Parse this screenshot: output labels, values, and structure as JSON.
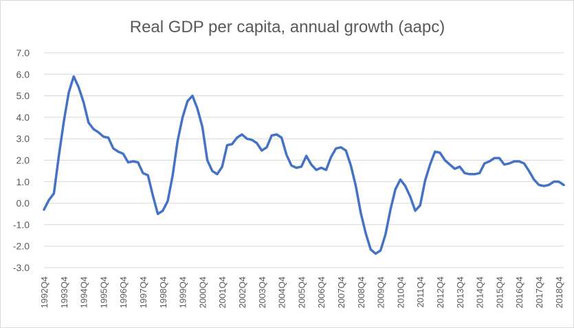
{
  "chart_data": {
    "type": "line",
    "title": "Real GDP per capita, annual growth (aapc)",
    "xlabel": "",
    "ylabel": "",
    "ylim": [
      -3.0,
      7.0
    ],
    "y_ticks": [
      "7.0",
      "6.0",
      "5.0",
      "4.0",
      "3.0",
      "2.0",
      "1.0",
      "0.0",
      "-1.0",
      "-2.0",
      "-3.0"
    ],
    "x_tick_labels": [
      "1992Q4",
      "1993Q4",
      "1994Q4",
      "1995Q4",
      "1996Q4",
      "1997Q4",
      "1998Q4",
      "1999Q4",
      "2000Q4",
      "2001Q4",
      "2002Q4",
      "2003Q4",
      "2004Q4",
      "2005Q4",
      "2006Q4",
      "2007Q4",
      "2008Q4",
      "2009Q4",
      "2010Q4",
      "2011Q4",
      "2012Q4",
      "2013Q4",
      "2014Q4",
      "2015Q4",
      "2016Q4",
      "2017Q4",
      "2018Q4"
    ],
    "grid": true,
    "legend": "none",
    "line_color": "#4472c4",
    "series": [
      {
        "name": "Real GDP per capita, annual growth (aapc)",
        "values": [
          -0.3,
          0.15,
          0.45,
          2.2,
          3.8,
          5.15,
          5.9,
          5.4,
          4.7,
          3.75,
          3.45,
          3.3,
          3.1,
          3.05,
          2.55,
          2.4,
          2.3,
          1.9,
          1.95,
          1.9,
          1.4,
          1.3,
          0.35,
          -0.5,
          -0.35,
          0.1,
          1.3,
          2.9,
          4.0,
          4.75,
          5.0,
          4.4,
          3.55,
          2.0,
          1.5,
          1.35,
          1.7,
          2.7,
          2.75,
          3.05,
          3.2,
          3.0,
          2.95,
          2.8,
          2.45,
          2.6,
          3.15,
          3.2,
          3.05,
          2.25,
          1.75,
          1.65,
          1.7,
          2.2,
          1.8,
          1.55,
          1.65,
          1.55,
          2.15,
          2.55,
          2.6,
          2.45,
          1.75,
          0.8,
          -0.45,
          -1.4,
          -2.15,
          -2.35,
          -2.2,
          -1.45,
          -0.3,
          0.65,
          1.1,
          0.8,
          0.3,
          -0.35,
          -0.1,
          1.05,
          1.8,
          2.4,
          2.35,
          2.0,
          1.8,
          1.6,
          1.7,
          1.4,
          1.35,
          1.35,
          1.4,
          1.85,
          1.95,
          2.1,
          2.1,
          1.8,
          1.85,
          1.95,
          1.95,
          1.85,
          1.5,
          1.1,
          0.85,
          0.8,
          0.85,
          1.0,
          1.0,
          0.85
        ]
      }
    ]
  }
}
